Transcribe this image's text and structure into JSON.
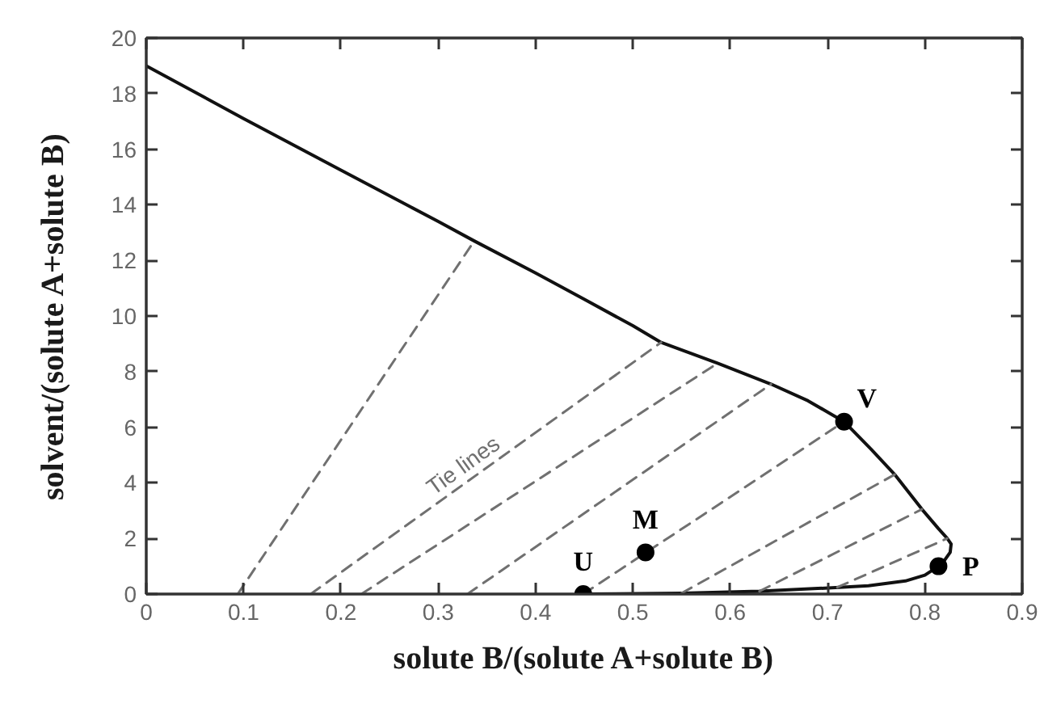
{
  "chart_data": {
    "type": "line",
    "xlabel": "solute B/(solute A+solute B)",
    "ylabel": "solvent/(solute A+solute B)",
    "xlim": [
      0,
      0.9
    ],
    "ylim": [
      0,
      20
    ],
    "xticks": [
      0,
      0.1,
      0.2,
      0.3,
      0.4,
      0.5,
      0.6,
      0.7,
      0.8,
      0.9
    ],
    "yticks": [
      0,
      2,
      4,
      6,
      8,
      10,
      12,
      14,
      16,
      18,
      20
    ],
    "series": [
      {
        "color": "#111111",
        "line_style": "solid",
        "x": [
          0,
          0.1,
          0.2,
          0.3,
          0.337,
          0.4,
          0.45,
          0.5,
          0.529,
          0.587,
          0.642,
          0.68,
          0.717,
          0.745,
          0.769,
          0.797,
          0.814,
          0.823,
          0.827,
          0.826,
          0.82,
          0.814,
          0.8,
          0.78,
          0.742,
          0.69,
          0.63,
          0.55,
          0.449
        ],
        "values": [
          19,
          17.1,
          15.25,
          13.4,
          12.7,
          11.55,
          10.6,
          9.65,
          9.05,
          8.3,
          7.55,
          6.95,
          6.2,
          5.2,
          4.3,
          3.05,
          2.35,
          2.0,
          1.8,
          1.5,
          1.2,
          1.0,
          0.68,
          0.47,
          0.3,
          0.2,
          0.1,
          0.03,
          0
        ]
      },
      {
        "color": "#707070",
        "line_style": "dashed",
        "x": [
          0.094,
          0.337
        ],
        "values": [
          0,
          12.7
        ]
      },
      {
        "color": "#707070",
        "line_style": "dashed",
        "x": [
          0.169,
          0.529
        ],
        "values": [
          0,
          9.05
        ]
      },
      {
        "color": "#707070",
        "line_style": "dashed",
        "x": [
          0.221,
          0.587
        ],
        "values": [
          0,
          8.3
        ]
      },
      {
        "color": "#707070",
        "line_style": "dashed",
        "x": [
          0.33,
          0.642
        ],
        "values": [
          0,
          7.55
        ]
      },
      {
        "color": "#707070",
        "line_style": "dashed",
        "x": [
          0.449,
          0.717
        ],
        "values": [
          0,
          6.2
        ]
      },
      {
        "color": "#707070",
        "line_style": "dashed",
        "x": [
          0.55,
          0.769
        ],
        "values": [
          0.03,
          4.3
        ]
      },
      {
        "color": "#707070",
        "line_style": "dashed",
        "x": [
          0.63,
          0.797
        ],
        "values": [
          0.1,
          3.05
        ]
      },
      {
        "color": "#707070",
        "line_style": "dashed",
        "x": [
          0.71,
          0.823
        ],
        "values": [
          0.24,
          2.0
        ]
      },
      {
        "type": "scatter",
        "color": "#000000",
        "marker": "circle",
        "x": [
          0.449,
          0.513,
          0.717,
          0.814
        ],
        "values": [
          0,
          1.5,
          6.2,
          1.0
        ]
      }
    ],
    "annotations": [
      {
        "text": "Tie lines",
        "x": 0.335,
        "y": 4.17
      },
      {
        "text": "U",
        "x": 0.449,
        "y": 0
      },
      {
        "text": "M",
        "x": 0.513,
        "y": 1.5
      },
      {
        "text": "V",
        "x": 0.717,
        "y": 6.2
      },
      {
        "text": "P",
        "x": 0.814,
        "y": 1.0
      }
    ]
  }
}
